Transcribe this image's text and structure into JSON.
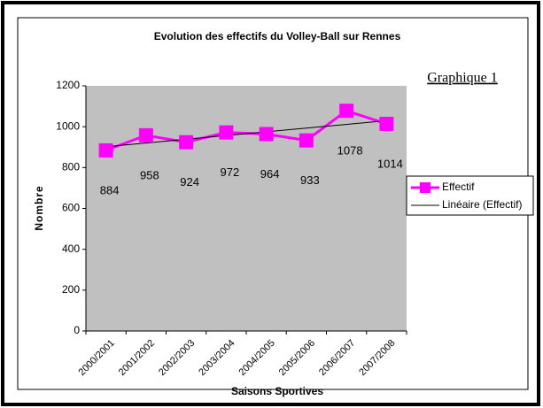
{
  "chart_data": {
    "type": "line",
    "title": "Evolution des effectifs du Volley-Ball sur Rennes",
    "annotation": "Graphique 1",
    "x_label": "Saisons Sportives",
    "y_label": "Nombre",
    "categories": [
      "2000/2001",
      "2001/2002",
      "2002/2003",
      "2003/2004",
      "2004/2005",
      "2005/2006",
      "2006/2007",
      "2007/2008"
    ],
    "series": [
      {
        "name": "Effectif",
        "color": "#ff00ff",
        "values": [
          884,
          958,
          924,
          972,
          964,
          933,
          1078,
          1014
        ]
      }
    ],
    "trendline": {
      "name": "Linéaire (Effectif)",
      "color": "#000000",
      "kind": "linear"
    },
    "ylim": [
      0,
      1200
    ],
    "yticks": [
      0,
      200,
      400,
      600,
      800,
      1000,
      1200
    ],
    "plot_background": "#c0c0c0",
    "legend": "right"
  }
}
